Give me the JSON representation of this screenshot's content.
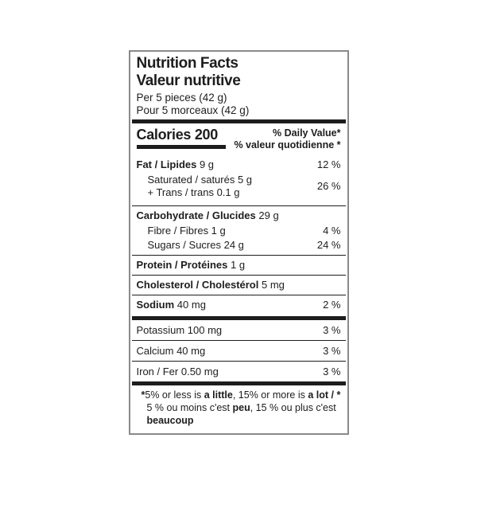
{
  "colors": {
    "background": "#ffffff",
    "text": "#1d1d1d",
    "rules": "#1d1d1d",
    "outer_border": "#8a8a8a"
  },
  "label": {
    "title_en": "Nutrition Facts",
    "title_fr": "Valeur nutritive",
    "serving_en": "Per 5 pieces (42 g)",
    "serving_fr": "Pour 5 morceaux (42 g)",
    "calories": "Calories 200",
    "dv_header_en": "% Daily Value*",
    "dv_header_fr": "% valeur quotidienne *",
    "nutrients": {
      "fat": {
        "name": "Fat / Lipides",
        "amount": "9 g",
        "dv": "12 %"
      },
      "saturated_trans": {
        "line1": "Saturated / saturés 5 g",
        "line2": "+ Trans / trans 0.1 g",
        "dv": "26 %"
      },
      "carbohydrate": {
        "name": "Carbohydrate / Glucides",
        "amount": "29 g",
        "dv": ""
      },
      "fibre": {
        "name": "Fibre / Fibres 1 g",
        "dv": "4 %"
      },
      "sugars": {
        "name": "Sugars / Sucres 24 g",
        "dv": "24 %"
      },
      "protein": {
        "name": "Protein / Protéines",
        "amount": "1 g",
        "dv": ""
      },
      "cholesterol": {
        "name": "Cholesterol / Cholestérol",
        "amount": "5 mg",
        "dv": ""
      },
      "sodium": {
        "name": "Sodium",
        "amount": "40 mg",
        "dv": "2 %"
      },
      "potassium": {
        "name": "Potassium 100 mg",
        "dv": "3 %"
      },
      "calcium": {
        "name": "Calcium 40 mg",
        "dv": "3 %"
      },
      "iron": {
        "name": "Iron / Fer 0.50 mg",
        "dv": "3 %"
      }
    },
    "footnote": {
      "star": "*",
      "en_1": "5% or less is ",
      "en_bold_1": "a little",
      "en_2": ", 15% or more is ",
      "en_bold_2": "a lot / *",
      "fr_1": " 5 % ou moins c'est ",
      "fr_bold_1": "peu",
      "fr_2": ", 15 % ou plus c'est ",
      "fr_bold_2": "beaucoup"
    }
  }
}
